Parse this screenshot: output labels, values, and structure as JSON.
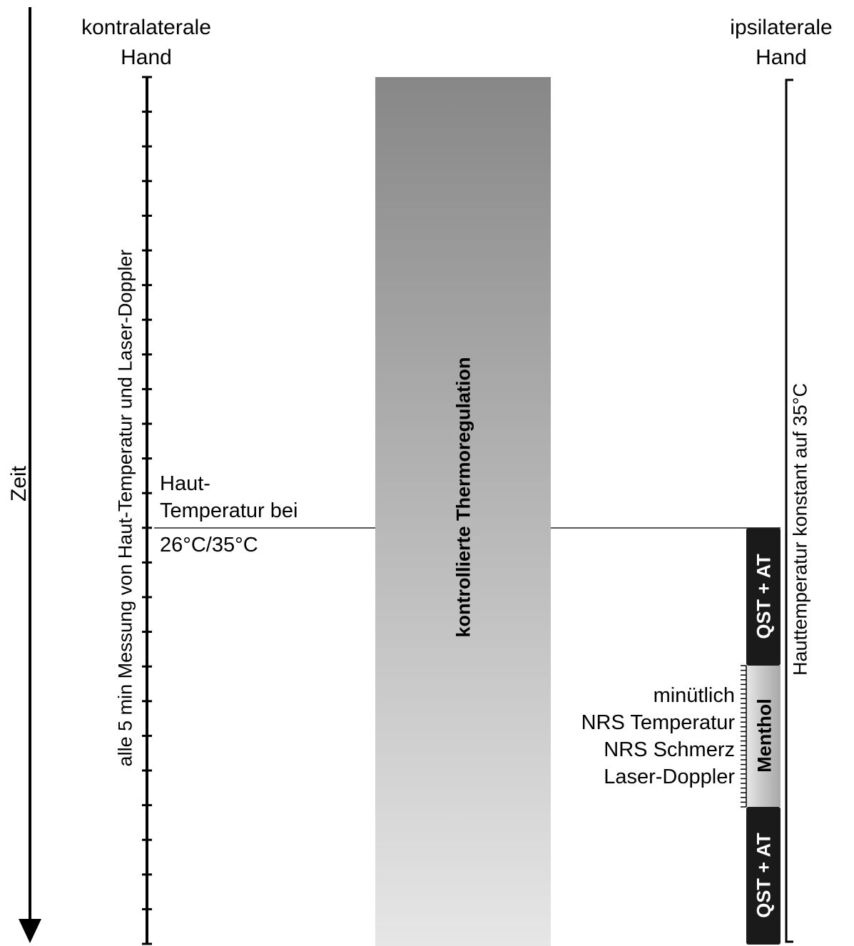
{
  "time_axis": {
    "label": "Zeit"
  },
  "left_hand": {
    "title_line1": "kontralaterale",
    "title_line2": "Hand",
    "measurement_label": "alle 5 min Messung von Haut-Temperatur und Laser-Doppler"
  },
  "right_hand": {
    "title_line1": "ipsilaterale",
    "title_line2": "Hand",
    "constant_label": "Hauttemperatur konstant auf 35°C"
  },
  "center": {
    "label": "kontrollierte Thermoregulation"
  },
  "skin_temp": {
    "line1": "Haut-",
    "line2": "Temperatur bei",
    "line3": "26°C/35°C"
  },
  "blocks": {
    "qst_top": "QST + AT",
    "menthol": "Menthol",
    "qst_bottom": "QST + AT"
  },
  "menthol_measures": [
    "minütlich",
    "NRS Temperatur",
    "NRS Schmerz",
    "Laser-Doppler"
  ],
  "colors": {
    "gradient_top": "#878787",
    "gradient_bottom": "#e6e6e6",
    "qst_block": "#1a1a1a",
    "menthol_block": "#c8c8c8"
  }
}
